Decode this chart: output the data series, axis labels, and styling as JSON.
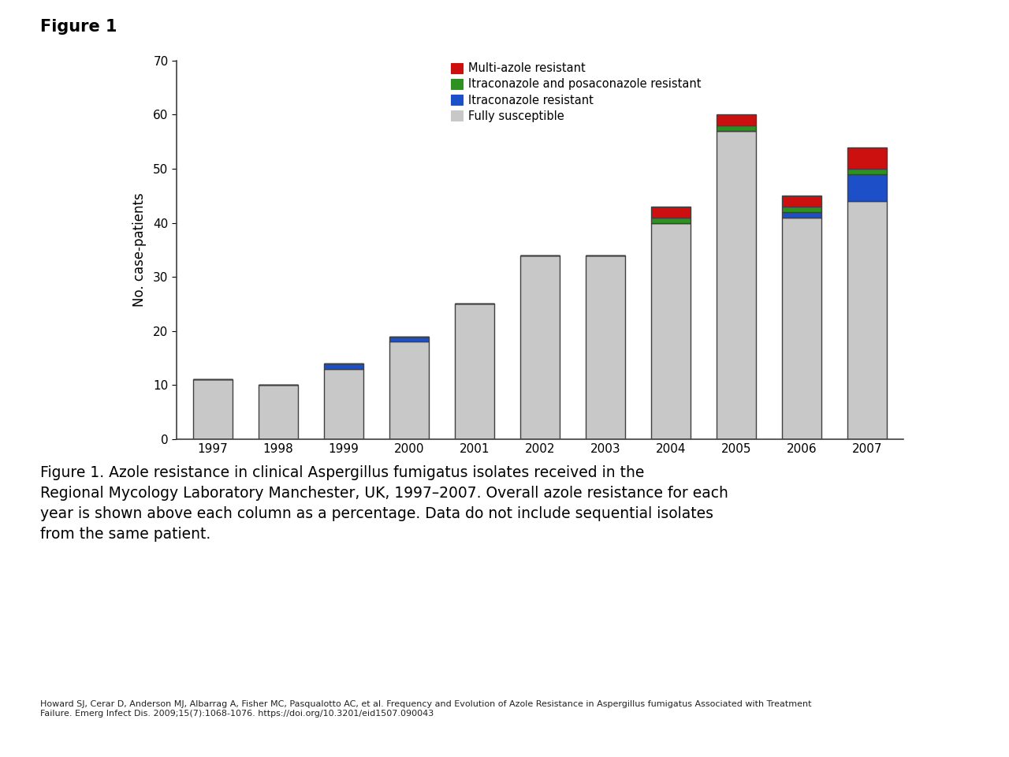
{
  "years": [
    "1997",
    "1998",
    "1999",
    "2000",
    "2001",
    "2002",
    "2003",
    "2004",
    "2005",
    "2006",
    "2007"
  ],
  "fully_susceptible": [
    11,
    10,
    13,
    18,
    25,
    34,
    34,
    40,
    57,
    41,
    44
  ],
  "itraconazole_resistant": [
    0,
    0,
    1,
    1,
    0,
    0,
    0,
    0,
    0,
    1,
    5
  ],
  "itra_posacon_resistant": [
    0,
    0,
    0,
    0,
    0,
    0,
    0,
    1,
    1,
    1,
    1
  ],
  "multi_azole_resistant": [
    0,
    0,
    0,
    0,
    0,
    0,
    0,
    2,
    2,
    2,
    4
  ],
  "colors": {
    "fully_susceptible": "#C8C8C8",
    "itraconazole_resistant": "#1C4FC8",
    "itra_posacon_resistant": "#2E9020",
    "multi_azole_resistant": "#CC1010"
  },
  "legend_labels": [
    "Multi-azole resistant",
    "Itraconazole and posaconazole resistant",
    "Itraconazole resistant",
    "Fully susceptible"
  ],
  "ylabel": "No. case-patients",
  "ylim": [
    0,
    70
  ],
  "yticks": [
    0,
    10,
    20,
    30,
    40,
    50,
    60,
    70
  ],
  "figure_title": "Figure 1",
  "caption_prefix": "Figure 1. ",
  "caption_body": "Azole resistance in clinical Aspergillus fumigatus isolates received in the Regional Mycology Laboratory Manchester, UK, 1997–2007. Overall azole resistance for each year is shown above each column as a percentage. Data do not include sequential isolates from the same patient.",
  "footnote": "Howard SJ, Cerar D, Anderson MJ, Albarrag A, Fisher MC, Pasqualotto AC, et al. Frequency and Evolution of Azole Resistance in Aspergillus fumigatus Associated with Treatment\nFailure. Emerg Infect Dis. 2009;15(7):1068-1076. https://doi.org/10.3201/eid1507.090043",
  "bar_edge_color": "#404040",
  "bar_edge_width": 1.0
}
